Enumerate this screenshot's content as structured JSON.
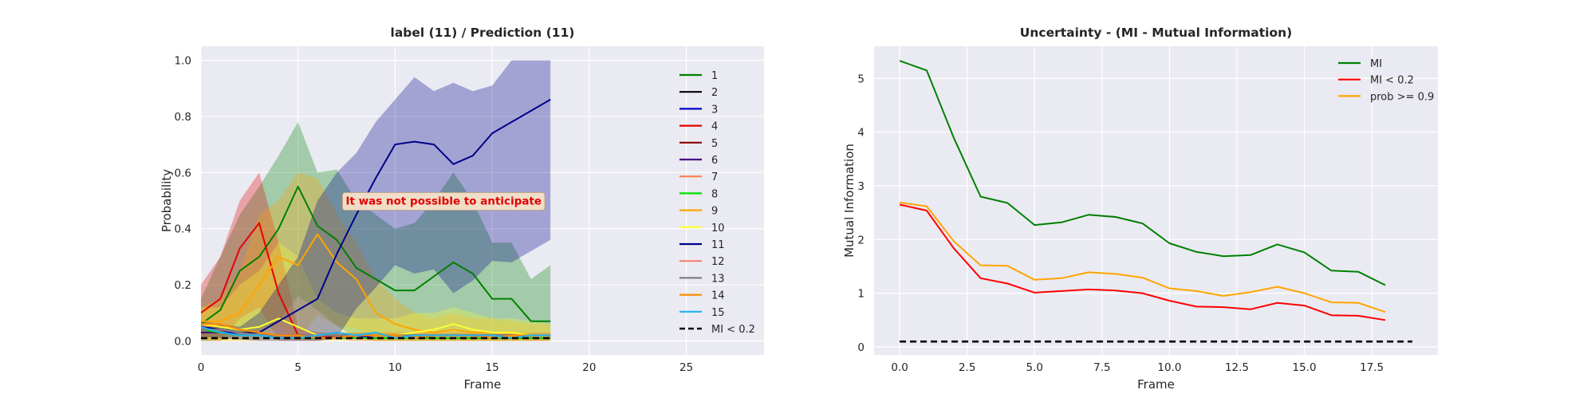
{
  "chart_data": [
    {
      "type": "line",
      "title": "label (11) / Prediction (11)",
      "xlabel": "Frame",
      "ylabel": "Probability",
      "xlim": [
        0,
        29
      ],
      "ylim": [
        -0.05,
        1.05
      ],
      "xticks": [
        0,
        5,
        10,
        15,
        20,
        25
      ],
      "yticks": [
        0.0,
        0.2,
        0.4,
        0.6,
        0.8,
        1.0
      ],
      "ytick_labels": [
        "0.0",
        "0.2",
        "0.4",
        "0.6",
        "0.8",
        "1.0"
      ],
      "grid": true,
      "legend_position": "right",
      "annotation": {
        "text": "It was not possible to anticipate",
        "x": 12.5,
        "y": 0.5
      },
      "x": [
        0,
        1,
        2,
        3,
        4,
        5,
        6,
        7,
        8,
        9,
        10,
        11,
        12,
        13,
        14,
        15,
        16,
        17,
        18
      ],
      "series": [
        {
          "name": "1",
          "color": "#008000",
          "values": [
            0.06,
            0.11,
            0.25,
            0.3,
            0.4,
            0.55,
            0.41,
            0.36,
            0.26,
            0.22,
            0.18,
            0.18,
            0.23,
            0.28,
            0.24,
            0.15,
            0.15,
            0.07,
            0.07
          ],
          "band": [
            0.15,
            0.3,
            0.45,
            0.55,
            0.66,
            0.78,
            0.6,
            0.61,
            0.5,
            0.45,
            0.4,
            0.42,
            0.5,
            0.6,
            0.5,
            0.35,
            0.35,
            0.22,
            0.27
          ]
        },
        {
          "name": "2",
          "color": "#000000",
          "values": [
            0.05,
            0.04,
            0.03,
            0.02,
            0.02,
            0.02,
            0.02,
            0.02,
            0.02,
            0.02,
            0.02,
            0.01,
            0.02,
            0.02,
            0.02,
            0.02,
            0.02,
            0.02,
            0.02
          ]
        },
        {
          "name": "3",
          "color": "#0000cd",
          "values": [
            0.05,
            0.04,
            0.02,
            0.02,
            0.01,
            0.01,
            0.01,
            0.01,
            0.02,
            0.01,
            0.01,
            0.01,
            0.01,
            0.01,
            0.01,
            0.01,
            0.01,
            0.01,
            0.01
          ]
        },
        {
          "name": "4",
          "color": "#e60000",
          "values": [
            0.1,
            0.15,
            0.33,
            0.42,
            0.17,
            0.02,
            0.01,
            0.02,
            0.01,
            0.01,
            0.01,
            0.01,
            0.01,
            0.01,
            0.01,
            0.01,
            0.01,
            0.01,
            0.01
          ],
          "band": [
            0.2,
            0.3,
            0.5,
            0.6,
            0.35,
            0.05,
            0.03,
            0.03,
            0.03,
            0.03,
            0.03,
            0.03,
            0.03,
            0.03,
            0.03,
            0.03,
            0.03,
            0.03,
            0.03
          ]
        },
        {
          "name": "5",
          "color": "#8b0000",
          "values": [
            0.04,
            0.03,
            0.02,
            0.02,
            0.02,
            0.02,
            0.02,
            0.02,
            0.02,
            0.02,
            0.02,
            0.02,
            0.02,
            0.02,
            0.02,
            0.02,
            0.02,
            0.02,
            0.02
          ]
        },
        {
          "name": "6",
          "color": "#4b0082",
          "values": [
            0.03,
            0.03,
            0.02,
            0.02,
            0.02,
            0.02,
            0.02,
            0.02,
            0.02,
            0.02,
            0.02,
            0.02,
            0.02,
            0.02,
            0.02,
            0.02,
            0.02,
            0.02,
            0.02
          ]
        },
        {
          "name": "7",
          "color": "#ff7f50",
          "values": [
            0.05,
            0.06,
            0.04,
            0.03,
            0.02,
            0.02,
            0.02,
            0.02,
            0.02,
            0.02,
            0.02,
            0.02,
            0.02,
            0.02,
            0.02,
            0.02,
            0.02,
            0.02,
            0.02
          ]
        },
        {
          "name": "8",
          "color": "#00e000",
          "values": [
            0.04,
            0.03,
            0.02,
            0.02,
            0.01,
            0.01,
            0.01,
            0.01,
            0.01,
            0.01,
            0.01,
            0.01,
            0.01,
            0.01,
            0.01,
            0.01,
            0.01,
            0.01,
            0.01
          ]
        },
        {
          "name": "9",
          "color": "#ffa500",
          "values": [
            0.07,
            0.07,
            0.1,
            0.2,
            0.3,
            0.27,
            0.38,
            0.28,
            0.22,
            0.1,
            0.06,
            0.04,
            0.03,
            0.04,
            0.03,
            0.03,
            0.03,
            0.02,
            0.02
          ],
          "band": [
            0.12,
            0.15,
            0.25,
            0.45,
            0.5,
            0.6,
            0.58,
            0.45,
            0.35,
            0.22,
            0.15,
            0.1,
            0.08,
            0.1,
            0.08,
            0.08,
            0.07,
            0.06,
            0.06
          ]
        },
        {
          "name": "10",
          "color": "#ffff33",
          "values": [
            0.06,
            0.05,
            0.04,
            0.05,
            0.08,
            0.05,
            0.02,
            0.02,
            0.02,
            0.02,
            0.02,
            0.03,
            0.04,
            0.06,
            0.04,
            0.03,
            0.03,
            0.02,
            0.02
          ],
          "band": [
            0.12,
            0.12,
            0.2,
            0.25,
            0.35,
            0.3,
            0.15,
            0.1,
            0.08,
            0.08,
            0.08,
            0.1,
            0.1,
            0.12,
            0.1,
            0.08,
            0.08,
            0.07,
            0.06
          ]
        },
        {
          "name": "11",
          "color": "#00008b",
          "values": [
            0.05,
            0.04,
            0.03,
            0.03,
            0.07,
            0.11,
            0.15,
            0.31,
            0.45,
            0.58,
            0.7,
            0.71,
            0.7,
            0.63,
            0.66,
            0.74,
            0.78,
            0.82,
            0.86
          ],
          "band": [
            0.07,
            0.06,
            0.05,
            0.1,
            0.2,
            0.3,
            0.5,
            0.6,
            0.67,
            0.78,
            0.86,
            0.94,
            0.89,
            0.92,
            0.89,
            0.91,
            1.0,
            1.0,
            1.0
          ]
        },
        {
          "name": "12",
          "color": "#fa8072",
          "values": [
            0.04,
            0.04,
            0.03,
            0.02,
            0.02,
            0.02,
            0.02,
            0.02,
            0.02,
            0.02,
            0.02,
            0.02,
            0.02,
            0.02,
            0.02,
            0.02,
            0.02,
            0.02,
            0.02
          ]
        },
        {
          "name": "13",
          "color": "#808080",
          "values": [
            0.04,
            0.04,
            0.03,
            0.02,
            0.02,
            0.02,
            0.02,
            0.02,
            0.02,
            0.02,
            0.02,
            0.02,
            0.02,
            0.02,
            0.02,
            0.02,
            0.02,
            0.02,
            0.02
          ]
        },
        {
          "name": "14",
          "color": "#ff8c00",
          "values": [
            0.06,
            0.06,
            0.04,
            0.03,
            0.02,
            0.02,
            0.01,
            0.01,
            0.02,
            0.02,
            0.02,
            0.01,
            0.02,
            0.02,
            0.02,
            0.01,
            0.02,
            0.02,
            0.02
          ]
        },
        {
          "name": "15",
          "color": "#1fb4f0",
          "values": [
            0.05,
            0.03,
            0.02,
            0.02,
            0.01,
            0.01,
            0.02,
            0.03,
            0.02,
            0.03,
            0.01,
            0.02,
            0.02,
            0.02,
            0.02,
            0.02,
            0.01,
            0.02,
            0.02
          ]
        },
        {
          "name": "MI < 0.2",
          "color": "#000000",
          "dashed": true,
          "values": [
            0.01,
            0.01,
            0.01,
            0.01,
            0.01,
            0.01,
            0.01,
            0.01,
            0.01,
            0.01,
            0.01,
            0.01,
            0.01,
            0.01,
            0.01,
            0.01,
            0.01,
            0.01,
            0.01
          ]
        }
      ]
    },
    {
      "type": "line",
      "title": "Uncertainty - (MI - Mutual Information)",
      "xlabel": "Frame",
      "ylabel": "Mutual Information",
      "xlim": [
        -0.95,
        19.95
      ],
      "ylim": [
        -0.15,
        5.6
      ],
      "xticks": [
        0,
        2.5,
        5,
        7.5,
        10,
        12.5,
        15,
        17.5
      ],
      "xtick_labels": [
        "0.0",
        "2.5",
        "5.0",
        "7.5",
        "10.0",
        "12.5",
        "15.0",
        "17.5"
      ],
      "yticks": [
        0,
        1,
        2,
        3,
        4,
        5
      ],
      "grid": true,
      "legend_position": "top-right",
      "x": [
        0,
        1,
        2,
        3,
        4,
        5,
        6,
        7,
        8,
        9,
        10,
        11,
        12,
        13,
        14,
        15,
        16,
        17,
        18
      ],
      "series": [
        {
          "name": "MI",
          "color": "#008000",
          "values": [
            5.33,
            5.15,
            3.9,
            2.8,
            2.68,
            2.27,
            2.32,
            2.46,
            2.42,
            2.3,
            1.93,
            1.77,
            1.69,
            1.71,
            1.91,
            1.76,
            1.42,
            1.4,
            1.15
          ]
        },
        {
          "name": "MI < 0.2",
          "color": "#ff0000",
          "values": [
            2.65,
            2.54,
            1.84,
            1.28,
            1.18,
            1.01,
            1.04,
            1.07,
            1.05,
            1.0,
            0.86,
            0.75,
            0.74,
            0.7,
            0.82,
            0.77,
            0.59,
            0.58,
            0.5
          ]
        },
        {
          "name": "prob >= 0.9",
          "color": "#ffa500",
          "values": [
            2.69,
            2.62,
            1.97,
            1.52,
            1.51,
            1.25,
            1.28,
            1.39,
            1.36,
            1.29,
            1.09,
            1.04,
            0.95,
            1.02,
            1.12,
            1.0,
            0.83,
            0.82,
            0.65
          ]
        },
        {
          "name": "",
          "color": "#000000",
          "dashed": true,
          "x": [
            0,
            19
          ],
          "values": [
            0.1,
            0.1
          ]
        }
      ]
    }
  ]
}
